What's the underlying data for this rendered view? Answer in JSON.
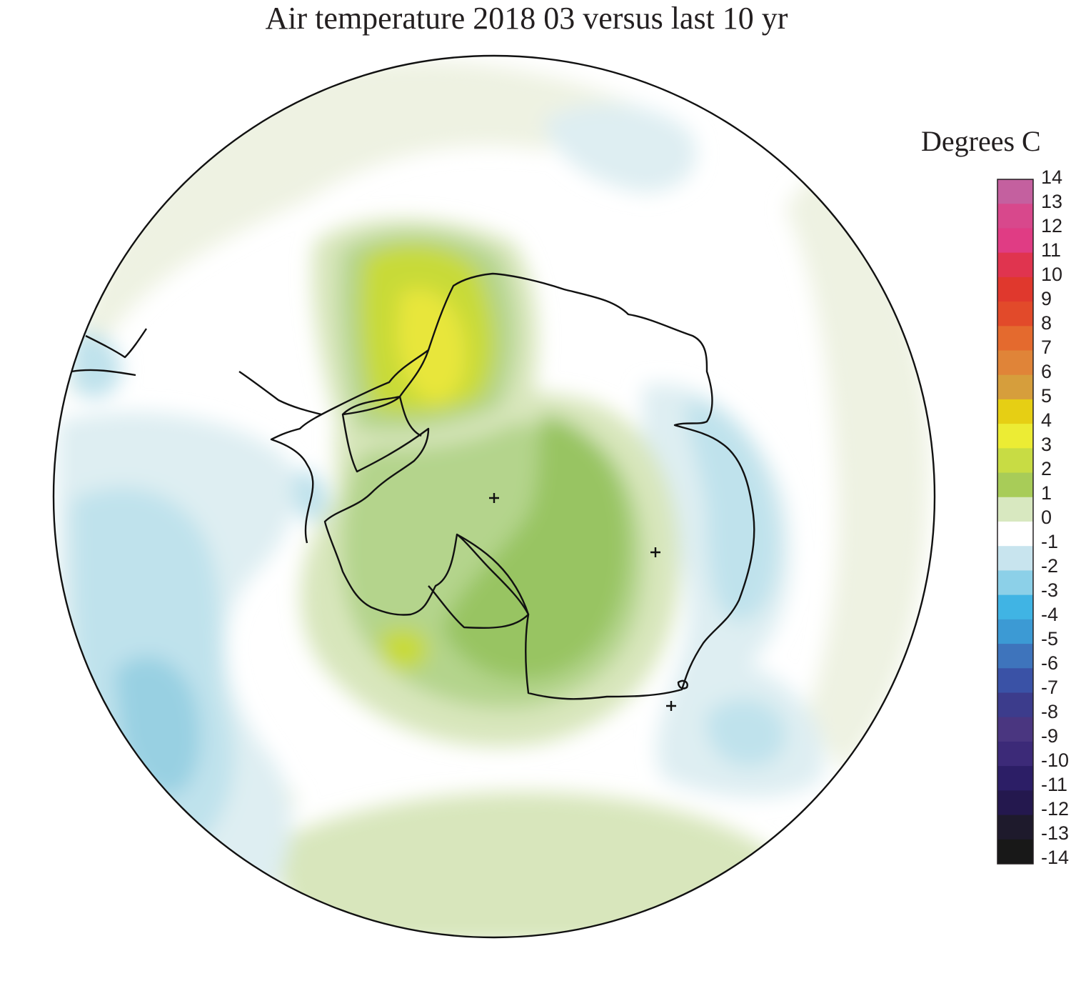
{
  "title": "Air temperature 2018 03 versus last 10 yr",
  "legend": {
    "title": "Degrees C",
    "ticks": [
      "14",
      "13",
      "12",
      "11",
      "10",
      "9",
      "8",
      "7",
      "6",
      "5",
      "4",
      "3",
      "2",
      "1",
      "0",
      "-1",
      "-2",
      "-3",
      "-4",
      "-5",
      "-6",
      "-7",
      "-8",
      "-9",
      "-10",
      "-11",
      "-12",
      "-13",
      "-14"
    ],
    "colors": [
      "#c4609f",
      "#d8488c",
      "#e03c84",
      "#e0344f",
      "#e0382d",
      "#e24a2a",
      "#e46a2e",
      "#e08438",
      "#d69e3c",
      "#e6cf14",
      "#ecec34",
      "#c8dc44",
      "#a8cc58",
      "#d8e8c0",
      "#ffffff",
      "#c8e4ee",
      "#8cd0e8",
      "#40b4e4",
      "#3c9ad4",
      "#3e74bc",
      "#3a52a6",
      "#3c3c8c",
      "#4a3680",
      "#3c2a78",
      "#2c1e66",
      "#24184e",
      "#1e1a2c",
      "#181818"
    ]
  },
  "map": {
    "projection": "south-polar-stereographic",
    "colors": {
      "ocean_default": "#ffffff",
      "slight_warm": "#eef2e2",
      "warm_1": "#d8e6bc",
      "warm_2": "#b4d48c",
      "warm_3": "#98c462",
      "warm_4": "#c8da38",
      "warm_5": "#e8e63a",
      "slight_cool": "#deeef2",
      "cool_1": "#bfe2ec",
      "cool_2": "#98d0e2",
      "coast": "#111111"
    }
  }
}
